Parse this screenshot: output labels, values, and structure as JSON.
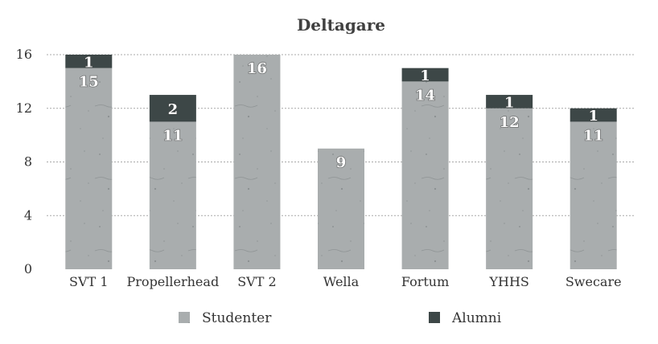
{
  "chart_data": {
    "type": "bar",
    "stacked": true,
    "title": "Deltagare",
    "xlabel": "",
    "ylabel": "",
    "categories": [
      "SVT 1",
      "Propellerhead",
      "SVT 2",
      "Wella",
      "Fortum",
      "YHHS",
      "Swecare"
    ],
    "series": [
      {
        "name": "Studenter",
        "values": [
          15,
          11,
          16,
          9,
          14,
          12,
          11
        ],
        "color": "#a9adae"
      },
      {
        "name": "Alumni",
        "values": [
          1,
          2,
          0,
          0,
          1,
          1,
          1
        ],
        "color": "#3d4747"
      }
    ],
    "ylim": [
      0,
      16
    ],
    "yticks": [
      0,
      4,
      8,
      12,
      16
    ],
    "grid": true,
    "legend": "bottom",
    "data_labels": true
  }
}
